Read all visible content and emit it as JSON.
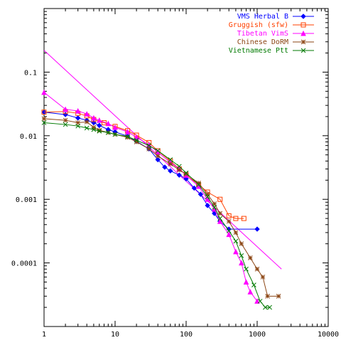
{
  "chart_data": {
    "type": "line",
    "xscale": "log",
    "yscale": "log",
    "xlim": [
      1,
      10000
    ],
    "ylim": [
      1e-05,
      1
    ],
    "x_ticks": [
      1,
      10,
      100,
      1000,
      10000
    ],
    "x_tick_labels": [
      "1",
      "10",
      "100",
      "1000",
      "10000"
    ],
    "y_ticks": [
      0.0001,
      0.001,
      0.01,
      0.1
    ],
    "y_tick_labels": [
      "0.0001",
      "0.001",
      "0.01",
      "0.1"
    ],
    "legend_position": "top-right",
    "series": [
      {
        "name": "VMS Herbal B",
        "color": "#0000ff",
        "marker": "diamond",
        "points": [
          [
            1,
            0.0235
          ],
          [
            2,
            0.0215
          ],
          [
            3,
            0.019
          ],
          [
            4,
            0.0175
          ],
          [
            5,
            0.016
          ],
          [
            6,
            0.0145
          ],
          [
            8,
            0.0125
          ],
          [
            10,
            0.0115
          ],
          [
            15,
            0.0098
          ],
          [
            20,
            0.0082
          ],
          [
            30,
            0.0062
          ],
          [
            40,
            0.0042
          ],
          [
            50,
            0.0032
          ],
          [
            60,
            0.0028
          ],
          [
            80,
            0.0024
          ],
          [
            100,
            0.0021
          ],
          [
            130,
            0.0015
          ],
          [
            160,
            0.0012
          ],
          [
            200,
            0.0008
          ],
          [
            250,
            0.0006
          ],
          [
            300,
            0.00045
          ],
          [
            400,
            0.00034
          ],
          [
            1000,
            0.00034
          ]
        ]
      },
      {
        "name": "Gruggish (sfw)",
        "color": "#ff4000",
        "marker": "square",
        "points": [
          [
            1,
            0.0235
          ],
          [
            2,
            0.024
          ],
          [
            3,
            0.0225
          ],
          [
            4,
            0.0205
          ],
          [
            5,
            0.018
          ],
          [
            7,
            0.016
          ],
          [
            10,
            0.014
          ],
          [
            15,
            0.012
          ],
          [
            20,
            0.0102
          ],
          [
            30,
            0.0078
          ],
          [
            40,
            0.0058
          ],
          [
            60,
            0.004
          ],
          [
            80,
            0.003
          ],
          [
            100,
            0.0024
          ],
          [
            150,
            0.0017
          ],
          [
            200,
            0.0013
          ],
          [
            300,
            0.001
          ],
          [
            400,
            0.00055
          ],
          [
            500,
            0.0005
          ],
          [
            650,
            0.0005
          ]
        ]
      },
      {
        "name": "Tibetan VimS",
        "color": "#ff00ff",
        "marker": "triangle",
        "points": [
          [
            1,
            0.048
          ],
          [
            2,
            0.026
          ],
          [
            3,
            0.0245
          ],
          [
            4,
            0.022
          ],
          [
            5,
            0.019
          ],
          [
            6,
            0.0175
          ],
          [
            8,
            0.0155
          ],
          [
            10,
            0.0135
          ],
          [
            15,
            0.0115
          ],
          [
            20,
            0.0095
          ],
          [
            30,
            0.0072
          ],
          [
            40,
            0.0055
          ],
          [
            60,
            0.0038
          ],
          [
            80,
            0.003
          ],
          [
            100,
            0.0024
          ],
          [
            150,
            0.0016
          ],
          [
            200,
            0.001
          ],
          [
            250,
            0.0007
          ],
          [
            300,
            0.00045
          ],
          [
            400,
            0.00028
          ],
          [
            500,
            0.00015
          ],
          [
            600,
            0.0001
          ],
          [
            700,
            5e-05
          ],
          [
            800,
            3.5e-05
          ],
          [
            1000,
            2.5e-05
          ]
        ]
      },
      {
        "name": "Chinese DoRM",
        "color": "#8b4513",
        "marker": "star",
        "points": [
          [
            1,
            0.0185
          ],
          [
            2,
            0.0175
          ],
          [
            3,
            0.016
          ],
          [
            4,
            0.0165
          ],
          [
            5,
            0.0135
          ],
          [
            6,
            0.0122
          ],
          [
            8,
            0.0112
          ],
          [
            10,
            0.0105
          ],
          [
            15,
            0.0094
          ],
          [
            20,
            0.008
          ],
          [
            30,
            0.0062
          ],
          [
            40,
            0.0048
          ],
          [
            60,
            0.0036
          ],
          [
            80,
            0.0029
          ],
          [
            100,
            0.0025
          ],
          [
            150,
            0.0018
          ],
          [
            200,
            0.0012
          ],
          [
            250,
            0.00085
          ],
          [
            300,
            0.0006
          ],
          [
            400,
            0.00045
          ],
          [
            500,
            0.0003
          ],
          [
            600,
            0.0002
          ],
          [
            800,
            0.00012
          ],
          [
            1000,
            8e-05
          ],
          [
            1200,
            6e-05
          ],
          [
            1400,
            3e-05
          ],
          [
            2000,
            3e-05
          ]
        ]
      },
      {
        "name": "Vietnamese Ptt",
        "color": "#007a00",
        "marker": "x",
        "points": [
          [
            1,
            0.016
          ],
          [
            2,
            0.015
          ],
          [
            3,
            0.0142
          ],
          [
            4,
            0.0132
          ],
          [
            5,
            0.0125
          ],
          [
            6,
            0.0118
          ],
          [
            8,
            0.0112
          ],
          [
            10,
            0.0105
          ],
          [
            15,
            0.0097
          ],
          [
            20,
            0.0085
          ],
          [
            30,
            0.007
          ],
          [
            40,
            0.0058
          ],
          [
            60,
            0.0042
          ],
          [
            80,
            0.0033
          ],
          [
            100,
            0.0026
          ],
          [
            150,
            0.0017
          ],
          [
            200,
            0.0011
          ],
          [
            250,
            0.00075
          ],
          [
            300,
            0.0005
          ],
          [
            400,
            0.00032
          ],
          [
            500,
            0.00022
          ],
          [
            600,
            0.00013
          ],
          [
            700,
            8e-05
          ],
          [
            900,
            4.5e-05
          ],
          [
            1100,
            2.5e-05
          ],
          [
            1300,
            2e-05
          ],
          [
            1500,
            2e-05
          ]
        ]
      }
    ],
    "reference_line": {
      "color": "#ff00ff",
      "points": [
        [
          1,
          0.22
        ],
        [
          2200,
          8e-05
        ]
      ]
    }
  }
}
